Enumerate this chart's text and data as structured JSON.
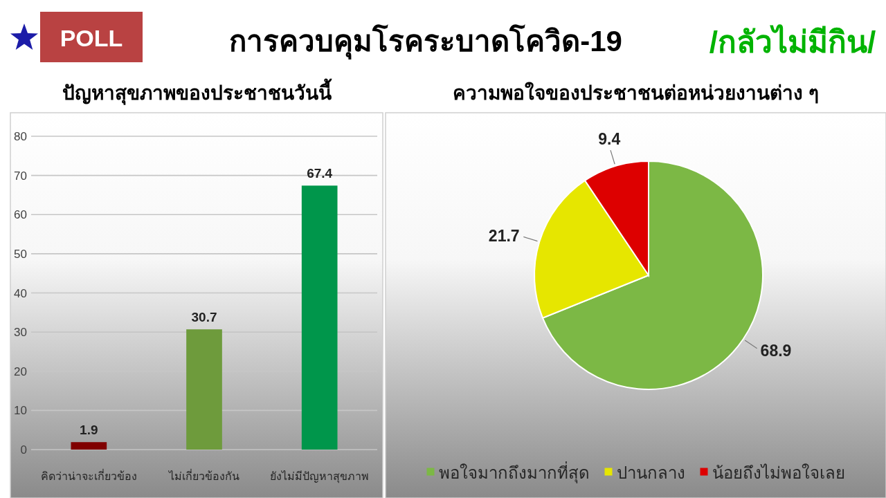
{
  "chart_data": [
    {
      "type": "other",
      "title": "การควบคุมโรคระบาดโควิด-19",
      "annotations": [
        "POLL",
        "/กลัวไม่มีกิน/"
      ]
    },
    {
      "type": "bar",
      "title": "ปัญหาสุขภาพของประชาชนวันนี้",
      "categories": [
        "คิดว่าน่าจะเกี่ยวข้อง",
        "ไม่เกี่ยวข้องกัน",
        "ยังไม่มีปัญหาสุขภาพ"
      ],
      "values": [
        1.9,
        30.7,
        67.4
      ],
      "colors": [
        "#800000",
        "#6e9b3c",
        "#00964b"
      ],
      "ylim": [
        0,
        80
      ],
      "yticks": [
        0,
        10,
        20,
        30,
        40,
        50,
        60,
        70,
        80
      ],
      "grid": "y",
      "data_labels": true
    },
    {
      "type": "pie",
      "title": "ความพอใจของประชาชนต่อหน่วยงานต่าง ๆ",
      "categories": [
        "พอใจมากถึงมากที่สุด",
        "ปานกลาง",
        "น้อยถึงไม่พอใจเลย"
      ],
      "values": [
        68.9,
        21.7,
        9.4
      ],
      "colors": [
        "#7cb845",
        "#e6e600",
        "#dd0000"
      ],
      "data_labels": true,
      "legend": "bottom"
    }
  ]
}
